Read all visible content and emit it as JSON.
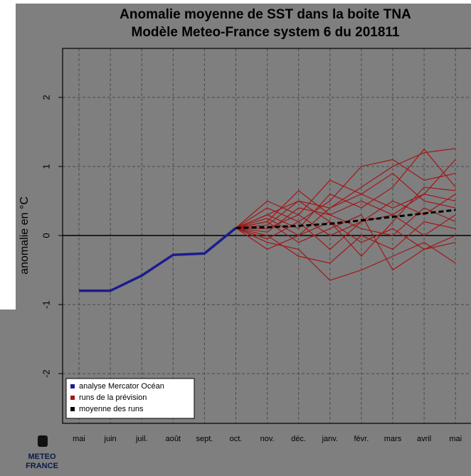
{
  "chart_data": {
    "type": "line",
    "title": "Anomalie moyenne de SST dans la boite TNA",
    "subtitle": "Modèle Meteo-France system 6 du 201811",
    "y_label": "anomalie en °C",
    "categories": [
      "mai",
      "juin",
      "juil.",
      "août",
      "sept.",
      "oct.",
      "nov.",
      "déc.",
      "janv.",
      "févr.",
      "mars",
      "avril",
      "mai"
    ],
    "ylim": [
      -2.72,
      2.71
    ],
    "yticks": [
      -2,
      -1,
      0,
      1,
      2
    ],
    "grid": true,
    "legend": "bottom-left",
    "series": [
      {
        "name": "analyse Mercator Océan",
        "color": "#1c1c90",
        "values": [
          -0.8,
          -0.8,
          -0.58,
          -0.28,
          -0.26,
          0.11,
          null,
          null,
          null,
          null,
          null,
          null,
          null
        ]
      },
      {
        "name": "runs de la prévision",
        "color": "#a01818",
        "members": [
          [
            null,
            null,
            null,
            null,
            null,
            0.11,
            0.3,
            0.5,
            0.4,
            0.7,
            1.0,
            1.2,
            1.26
          ],
          [
            null,
            null,
            null,
            null,
            null,
            0.11,
            0.2,
            0.65,
            0.3,
            0.5,
            0.3,
            0.6,
            1.1
          ],
          [
            null,
            null,
            null,
            null,
            null,
            0.11,
            -0.1,
            -0.2,
            -0.65,
            -0.5,
            -0.3,
            -0.1,
            -0.4
          ],
          [
            null,
            null,
            null,
            null,
            null,
            0.11,
            0.0,
            -0.3,
            -0.4,
            0.0,
            -0.2,
            0.2,
            0.1
          ],
          [
            null,
            null,
            null,
            null,
            null,
            0.11,
            0.4,
            0.2,
            0.5,
            1.0,
            1.1,
            0.8,
            0.9
          ],
          [
            null,
            null,
            null,
            null,
            null,
            0.11,
            0.1,
            0.3,
            0.0,
            0.2,
            0.5,
            0.3,
            0.6
          ],
          [
            null,
            null,
            null,
            null,
            null,
            0.11,
            -0.2,
            0.0,
            0.2,
            -0.1,
            0.1,
            -0.2,
            -0.1
          ],
          [
            null,
            null,
            null,
            null,
            null,
            0.11,
            0.3,
            0.1,
            0.6,
            0.4,
            0.7,
            1.25,
            0.7
          ],
          [
            null,
            null,
            null,
            null,
            null,
            0.11,
            0.05,
            0.4,
            0.3,
            0.1,
            0.0,
            0.4,
            0.2
          ],
          [
            null,
            null,
            null,
            null,
            null,
            0.11,
            0.2,
            -0.1,
            0.1,
            0.3,
            -0.5,
            -0.2,
            0.0
          ],
          [
            null,
            null,
            null,
            null,
            null,
            0.11,
            0.5,
            0.3,
            0.8,
            0.6,
            0.4,
            0.6,
            0.5
          ],
          [
            null,
            null,
            null,
            null,
            null,
            0.11,
            -0.05,
            0.2,
            -0.2,
            0.2,
            0.3,
            0.0,
            0.3
          ],
          [
            null,
            null,
            null,
            null,
            null,
            0.11,
            0.25,
            0.0,
            0.4,
            0.6,
            0.9,
            0.5,
            0.4
          ],
          [
            null,
            null,
            null,
            null,
            null,
            0.11,
            0.15,
            0.5,
            0.2,
            -0.3,
            0.2,
            0.7,
            0.65
          ]
        ]
      },
      {
        "name": "moyenne des runs",
        "color": "#000000",
        "values": [
          null,
          null,
          null,
          null,
          null,
          0.11,
          0.12,
          0.14,
          0.17,
          0.22,
          0.27,
          0.32,
          0.37
        ]
      }
    ]
  },
  "logo": {
    "line1": "METEO",
    "line2": "FRANCE"
  }
}
